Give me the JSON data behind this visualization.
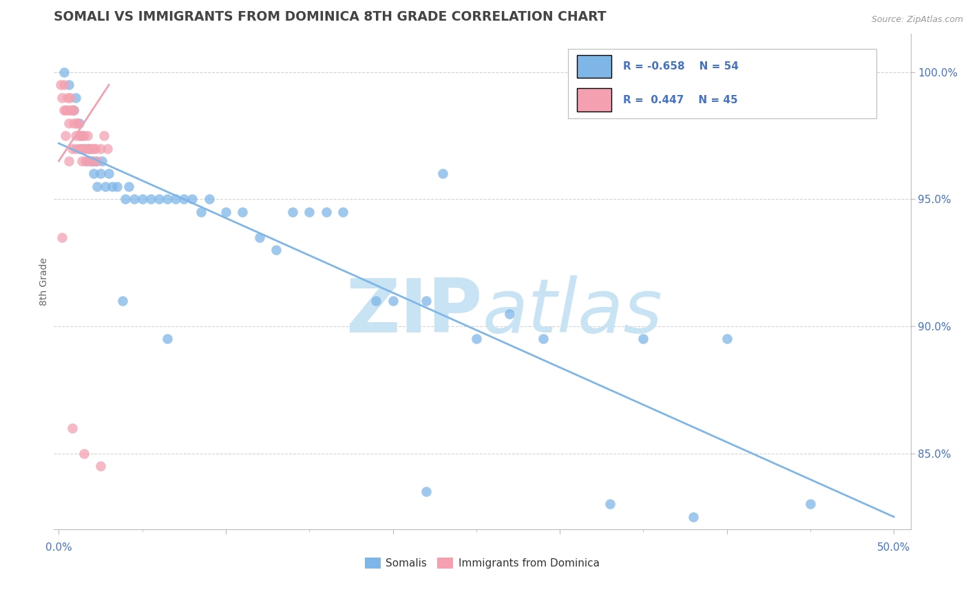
{
  "title": "SOMALI VS IMMIGRANTS FROM DOMINICA 8TH GRADE CORRELATION CHART",
  "source_text": "Source: ZipAtlas.com",
  "ylabel": "8th Grade",
  "ymin": 82.0,
  "ymax": 101.5,
  "xmin": -0.3,
  "xmax": 51.0,
  "legend_blue_r": "R = -0.658",
  "legend_blue_n": "N = 54",
  "legend_pink_r": "R =  0.447",
  "legend_pink_n": "N = 45",
  "blue_color": "#7EB6E8",
  "pink_color": "#F4A0B0",
  "title_color": "#444444",
  "axis_label_color": "#4472C4",
  "watermark_color": "#C8E4F4",
  "blue_scatter_x": [
    0.3,
    0.6,
    0.9,
    1.0,
    1.2,
    1.4,
    1.5,
    1.7,
    1.8,
    2.0,
    2.1,
    2.2,
    2.3,
    2.5,
    2.6,
    2.8,
    3.0,
    3.2,
    3.5,
    4.0,
    4.2,
    4.5,
    5.0,
    5.5,
    6.0,
    6.5,
    7.0,
    7.5,
    8.0,
    8.5,
    9.0,
    10.0,
    11.0,
    12.0,
    13.0,
    14.0,
    15.0,
    16.0,
    17.0,
    19.0,
    20.0,
    22.0,
    23.0,
    25.0,
    27.0,
    29.0,
    33.0,
    35.0,
    38.0,
    40.0,
    45.0,
    6.5,
    22.0,
    3.8
  ],
  "blue_scatter_y": [
    100.0,
    99.5,
    98.5,
    99.0,
    98.0,
    97.5,
    97.0,
    96.5,
    97.0,
    96.5,
    96.0,
    96.5,
    95.5,
    96.0,
    96.5,
    95.5,
    96.0,
    95.5,
    95.5,
    95.0,
    95.5,
    95.0,
    95.0,
    95.0,
    95.0,
    95.0,
    95.0,
    95.0,
    95.0,
    94.5,
    95.0,
    94.5,
    94.5,
    93.5,
    93.0,
    94.5,
    94.5,
    94.5,
    94.5,
    91.0,
    91.0,
    91.0,
    96.0,
    89.5,
    90.5,
    89.5,
    83.0,
    89.5,
    82.5,
    89.5,
    83.0,
    89.5,
    83.5,
    91.0
  ],
  "pink_scatter_x": [
    0.1,
    0.2,
    0.3,
    0.4,
    0.5,
    0.6,
    0.7,
    0.8,
    0.9,
    1.0,
    1.1,
    1.2,
    1.3,
    1.4,
    1.5,
    1.6,
    1.7,
    1.8,
    1.9,
    2.0,
    2.1,
    2.2,
    2.3,
    2.5,
    2.7,
    2.9,
    0.3,
    0.5,
    0.7,
    0.9,
    1.1,
    1.3,
    0.4,
    0.6,
    0.8,
    1.0,
    1.2,
    1.4,
    1.6,
    1.8,
    2.0,
    0.2,
    1.5,
    0.8,
    2.5
  ],
  "pink_scatter_y": [
    99.5,
    99.0,
    99.5,
    98.5,
    99.0,
    98.0,
    99.0,
    98.5,
    98.0,
    97.5,
    98.0,
    97.5,
    97.0,
    97.0,
    97.5,
    97.0,
    97.5,
    97.0,
    96.5,
    97.0,
    97.0,
    97.0,
    96.5,
    97.0,
    97.5,
    97.0,
    98.5,
    98.5,
    98.5,
    98.5,
    98.0,
    97.5,
    97.5,
    96.5,
    97.0,
    97.0,
    97.0,
    96.5,
    96.5,
    97.0,
    96.5,
    93.5,
    85.0,
    86.0,
    84.5
  ],
  "blue_trend_x": [
    0.0,
    50.0
  ],
  "blue_trend_y": [
    97.2,
    82.5
  ],
  "pink_trend_x": [
    0.0,
    3.0
  ],
  "pink_trend_y": [
    96.5,
    99.5
  ],
  "ytick_vals": [
    100,
    95,
    90,
    85
  ],
  "ytick_labels": [
    "100.0%",
    "95.0%",
    "90.0%",
    "85.0%"
  ],
  "grid_color": "#CCCCCC",
  "background_color": "#FFFFFF"
}
